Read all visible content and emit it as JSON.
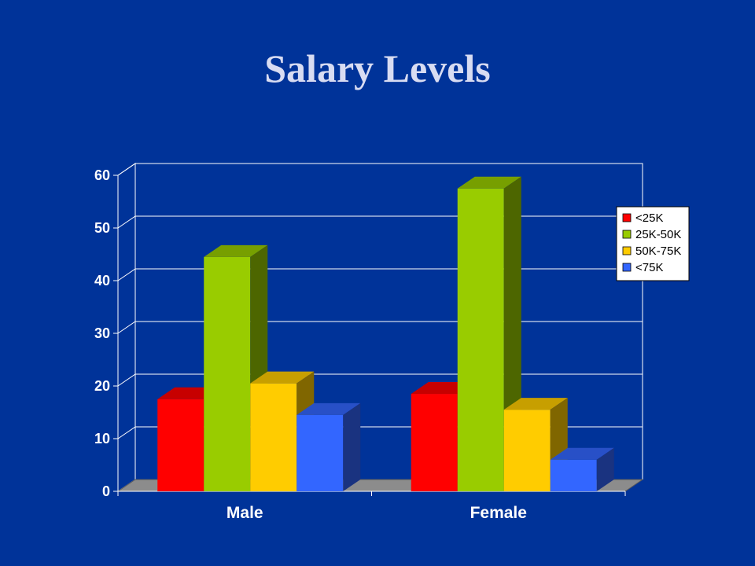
{
  "slide": {
    "title": "Salary Levels"
  },
  "chart_data": {
    "type": "bar",
    "title": "",
    "xlabel": "",
    "ylabel": "",
    "categories": [
      "Male",
      "Female"
    ],
    "series": [
      {
        "name": "<25K",
        "values": [
          17.5,
          18.5
        ],
        "color": "#ff0000"
      },
      {
        "name": "25K-50K",
        "values": [
          44.5,
          57.5
        ],
        "color": "#99cc00"
      },
      {
        "name": "50K-75K",
        "values": [
          20.5,
          15.5
        ],
        "color": "#ffcc00"
      },
      {
        "name": "<75K",
        "values": [
          14.5,
          6.0
        ],
        "color": "#3366ff"
      }
    ],
    "yticks": [
      "0",
      "10",
      "20",
      "30",
      "40",
      "50",
      "60"
    ],
    "ylim": [
      0,
      60
    ],
    "grid": true,
    "legend_position": "right",
    "style": "3d-clustered",
    "background": "#003399"
  }
}
